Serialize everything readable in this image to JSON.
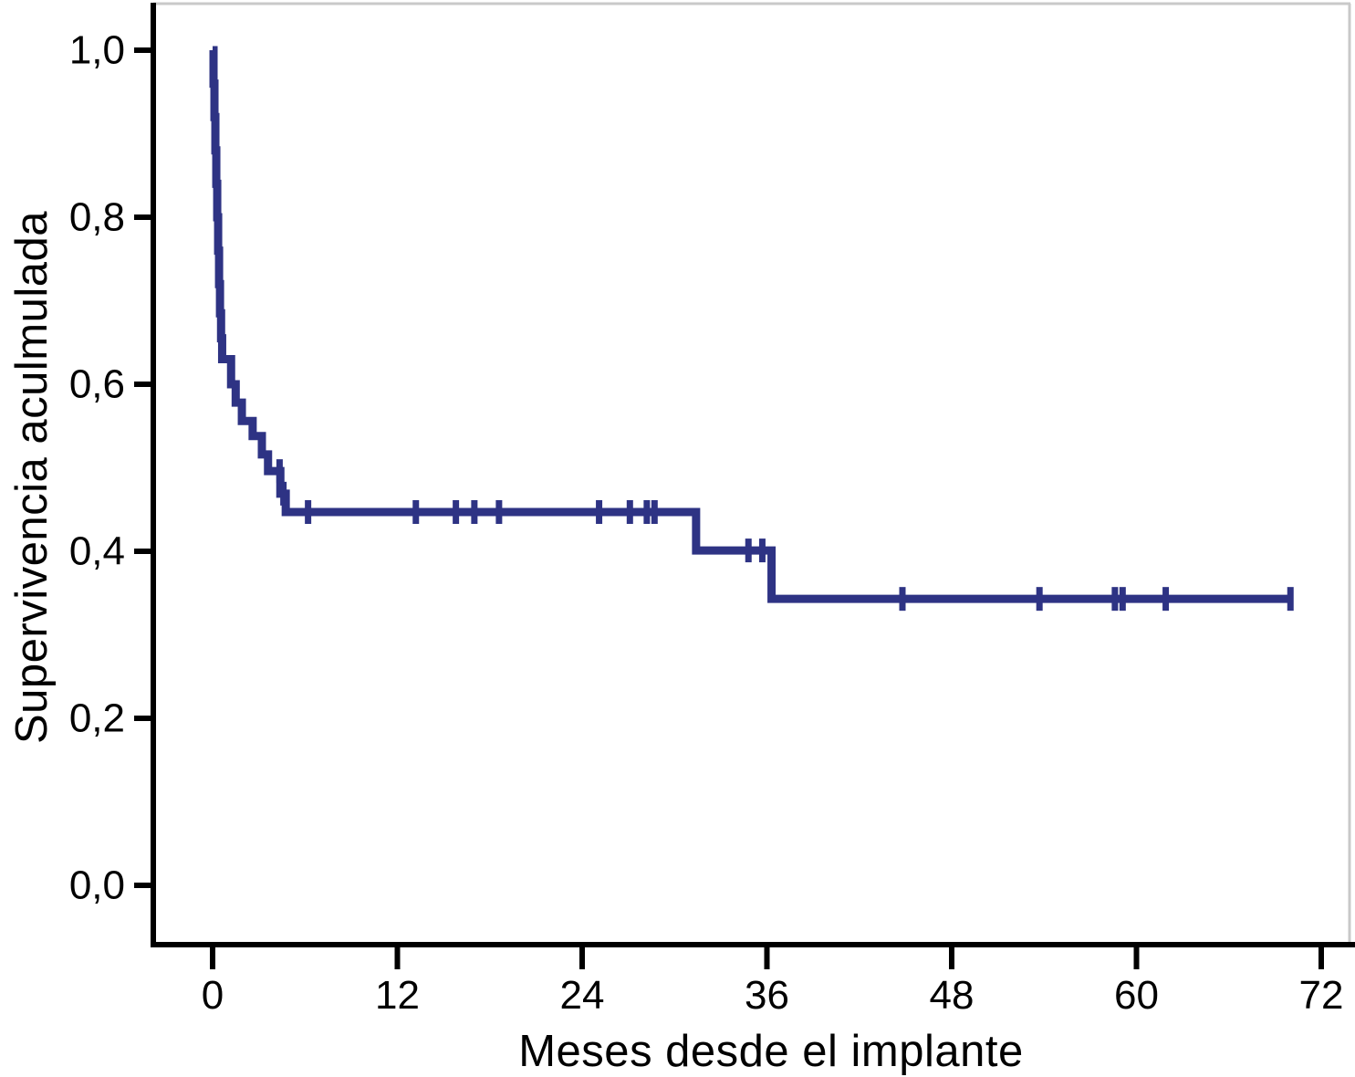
{
  "figure": {
    "background": "#ffffff",
    "frame_color": "#c9c9c9",
    "axis_color": "#000000",
    "text_color": "#000000",
    "curve_color": "#2e3384"
  },
  "chart_data": {
    "type": "line",
    "subtype": "kaplan-meier-step-function",
    "title": "",
    "xlabel": "Meses desde el implante",
    "ylabel": "Supervivencia aculmulada",
    "xlim": [
      0,
      72
    ],
    "ylim": [
      0.0,
      1.0
    ],
    "grid": false,
    "legend": "none",
    "x_ticks": [
      0,
      12,
      24,
      36,
      48,
      60,
      72
    ],
    "x_tick_labels": [
      "0",
      "12",
      "24",
      "36",
      "48",
      "60",
      "72"
    ],
    "y_ticks": [
      0.0,
      0.2,
      0.4,
      0.6,
      0.8,
      1.0
    ],
    "y_tick_labels": [
      "0,0",
      "0,2",
      "0,4",
      "0,6",
      "0,8",
      "1,0"
    ],
    "series": [
      {
        "name": "Supervivencia acumulada",
        "color": "#2e3384",
        "steps": [
          [
            0,
            1.0
          ],
          [
            0.06,
            0.96
          ],
          [
            0.12,
            0.92
          ],
          [
            0.18,
            0.88
          ],
          [
            0.24,
            0.84
          ],
          [
            0.3,
            0.8
          ],
          [
            0.36,
            0.76
          ],
          [
            0.42,
            0.72
          ],
          [
            0.48,
            0.685
          ],
          [
            0.55,
            0.655
          ],
          [
            0.62,
            0.63
          ],
          [
            1.2,
            0.6
          ],
          [
            1.5,
            0.578
          ],
          [
            1.9,
            0.556
          ],
          [
            2.6,
            0.538
          ],
          [
            3.2,
            0.516
          ],
          [
            3.6,
            0.496
          ],
          [
            4.4,
            0.469
          ],
          [
            4.75,
            0.447
          ],
          [
            31.4,
            0.401
          ],
          [
            36.3,
            0.343
          ]
        ],
        "end_time": 70,
        "censored": [
          [
            4.35,
            0.496
          ],
          [
            4.6,
            0.469
          ],
          [
            6.2,
            0.447
          ],
          [
            13.2,
            0.447
          ],
          [
            15.8,
            0.447
          ],
          [
            17.0,
            0.447
          ],
          [
            18.6,
            0.447
          ],
          [
            25.1,
            0.447
          ],
          [
            27.1,
            0.447
          ],
          [
            28.2,
            0.447
          ],
          [
            28.7,
            0.447
          ],
          [
            34.8,
            0.401
          ],
          [
            35.7,
            0.401
          ],
          [
            44.8,
            0.343
          ],
          [
            53.7,
            0.343
          ],
          [
            58.6,
            0.343
          ],
          [
            59.1,
            0.343
          ],
          [
            61.9,
            0.343
          ],
          [
            70,
            0.343
          ]
        ]
      }
    ]
  }
}
